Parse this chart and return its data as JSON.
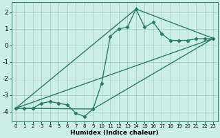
{
  "bg_color": "#cceee8",
  "grid_color": "#aacccc",
  "line_color": "#2a7a6a",
  "xlabel": "Humidex (Indice chaleur)",
  "xlim": [
    -0.5,
    23.5
  ],
  "ylim": [
    -4.6,
    2.6
  ],
  "xticks": [
    0,
    1,
    2,
    3,
    4,
    5,
    6,
    7,
    8,
    9,
    10,
    11,
    12,
    13,
    14,
    15,
    16,
    17,
    18,
    19,
    20,
    21,
    22,
    23
  ],
  "yticks": [
    -4,
    -3,
    -2,
    -1,
    0,
    1,
    2
  ],
  "main_x": [
    0,
    1,
    2,
    3,
    4,
    5,
    6,
    7,
    8,
    9,
    10,
    11,
    12,
    13,
    14,
    15,
    16,
    17,
    18,
    19,
    20,
    21,
    22,
    23
  ],
  "main_y": [
    -3.8,
    -3.8,
    -3.8,
    -3.5,
    -3.4,
    -3.5,
    -3.6,
    -4.1,
    -4.3,
    -3.85,
    -2.3,
    0.55,
    1.0,
    1.1,
    2.2,
    1.1,
    1.4,
    0.7,
    0.3,
    0.3,
    0.3,
    0.4,
    0.4,
    0.4
  ],
  "line1_x": [
    0,
    23
  ],
  "line1_y": [
    -3.8,
    0.42
  ],
  "line2_x": [
    0,
    9,
    23
  ],
  "line2_y": [
    -3.8,
    -3.85,
    0.42
  ],
  "line3_x": [
    0,
    14,
    23
  ],
  "line3_y": [
    -3.8,
    2.2,
    0.42
  ]
}
